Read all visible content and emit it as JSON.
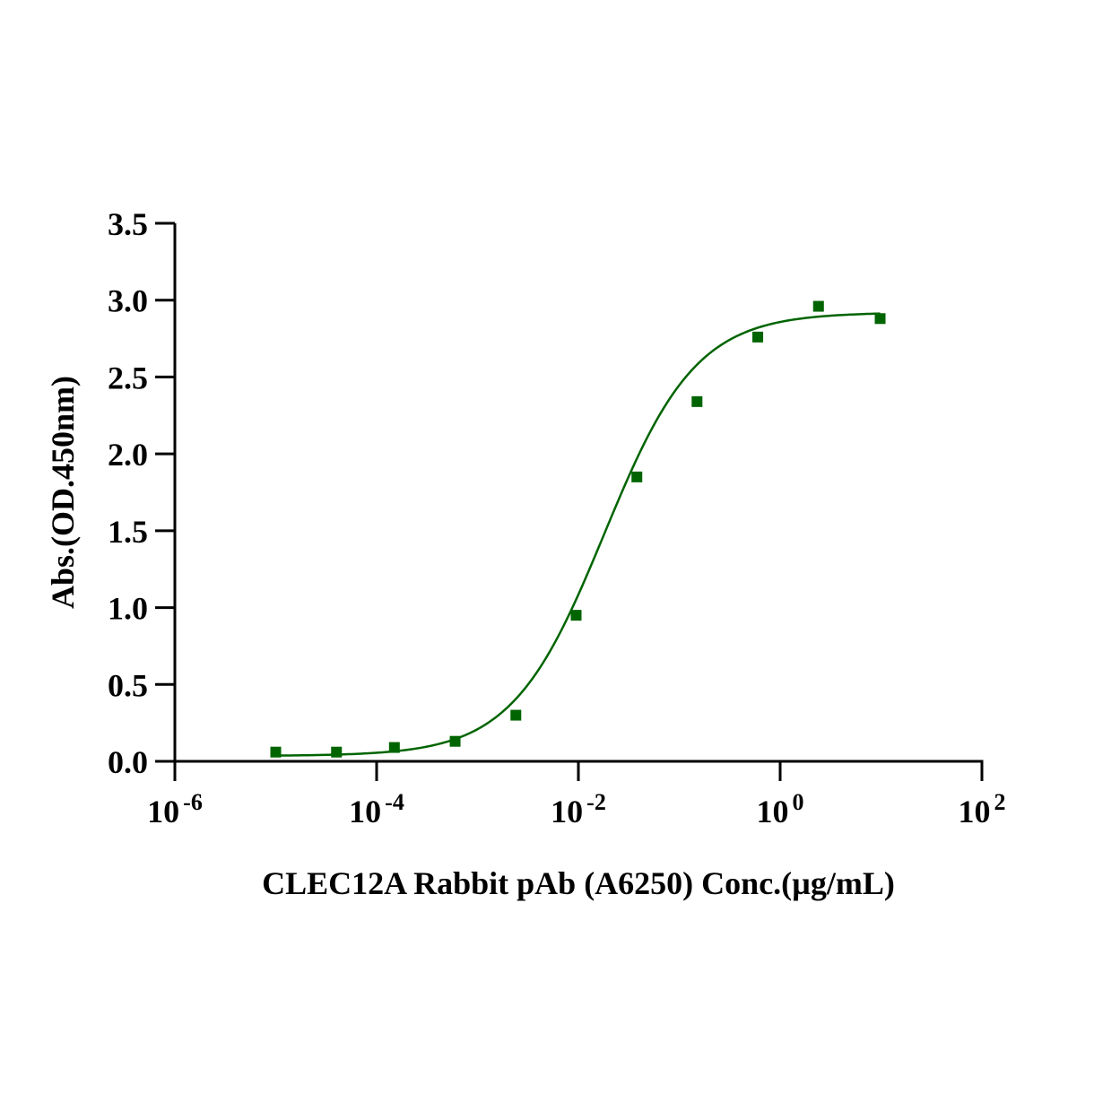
{
  "chart_data": {
    "type": "scatter",
    "xlabel": "CLEC12A Rabbit pAb (A6250)  Conc.(µg/mL)",
    "ylabel": "Abs.(OD.450nm)",
    "x_scale": "log",
    "xlim": [
      1e-06,
      100
    ],
    "ylim": [
      0,
      3.5
    ],
    "x_ticks": [
      {
        "value": 1e-06,
        "base": "10",
        "exp": "-6"
      },
      {
        "value": 0.0001,
        "base": "10",
        "exp": "-4"
      },
      {
        "value": 0.01,
        "base": "10",
        "exp": "-2"
      },
      {
        "value": 1,
        "base": "10",
        "exp": "0"
      },
      {
        "value": 100,
        "base": "10",
        "exp": "2"
      }
    ],
    "y_ticks": [
      "0.0",
      "0.5",
      "1.0",
      "1.5",
      "2.0",
      "2.5",
      "3.0",
      "3.5"
    ],
    "grid": false,
    "colors": {
      "series": "#006400"
    },
    "series": [
      {
        "x": [
          1e-05,
          4e-05,
          0.00015,
          0.0006,
          0.0024,
          0.0095,
          0.038,
          0.15,
          0.6,
          2.4,
          9.8
        ],
        "values": [
          0.06,
          0.06,
          0.09,
          0.13,
          0.3,
          0.95,
          1.85,
          2.34,
          2.76,
          2.96,
          2.88
        ]
      }
    ],
    "fit": {
      "model": "4PL",
      "bottom": 0.035,
      "top": 2.92,
      "ec50": 0.018,
      "hill": 0.95
    }
  }
}
